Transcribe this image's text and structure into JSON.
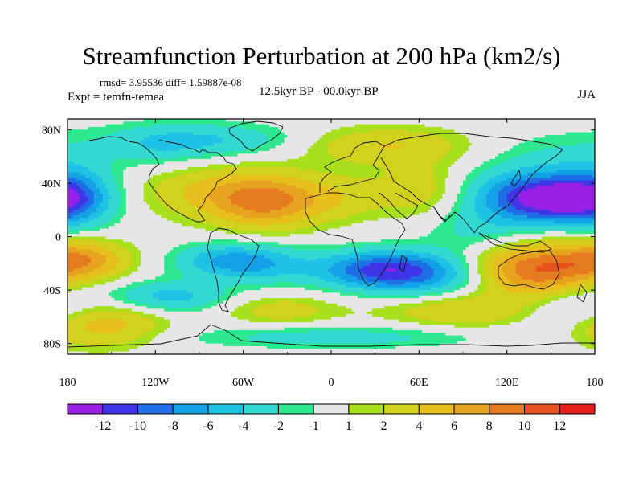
{
  "title": "Streamfunction Perturbation at 200 hPa (km2/s)",
  "stats": "rmsd= 3.95536  diff= 1.59887e-08",
  "experiment": "Expt = temfn-temea",
  "subtitle": "12.5kyr BP - 00.0kyr BP",
  "season": "JJA",
  "axes": {
    "lat_ticks": [
      {
        "value": 80,
        "label": "80N"
      },
      {
        "value": 40,
        "label": "40N"
      },
      {
        "value": 0,
        "label": "0"
      },
      {
        "value": -40,
        "label": "40S"
      },
      {
        "value": -80,
        "label": "80S"
      }
    ],
    "lon_ticks": [
      {
        "value": -180,
        "label": "180"
      },
      {
        "value": -120,
        "label": "120W"
      },
      {
        "value": -60,
        "label": "60W"
      },
      {
        "value": 0,
        "label": "0"
      },
      {
        "value": 60,
        "label": "60E"
      },
      {
        "value": 120,
        "label": "120E"
      },
      {
        "value": 180,
        "label": "180"
      }
    ]
  },
  "colorbar": {
    "colors": [
      "#9b20e6",
      "#3f34e6",
      "#1f6ee6",
      "#14a1e6",
      "#1ec2e4",
      "#33d9d0",
      "#2ee890",
      "#e6e6e6",
      "#a8e01e",
      "#d2d21e",
      "#e8c01e",
      "#e6a31e",
      "#e67a1e",
      "#e6521e",
      "#e61e1e"
    ],
    "labels": [
      "-12",
      "-10",
      "-8",
      "-6",
      "-4",
      "-2",
      "-1",
      "1",
      "2",
      "4",
      "6",
      "8",
      "10",
      "12"
    ]
  },
  "anomalies": [
    {
      "lon": 160,
      "lat": 28,
      "amp": -13,
      "rx": 28,
      "ry": 12
    },
    {
      "lon": 125,
      "lat": 30,
      "amp": -5,
      "rx": 25,
      "ry": 14
    },
    {
      "lon": -175,
      "lat": 32,
      "amp": -4,
      "rx": 18,
      "ry": 20
    },
    {
      "lon": -45,
      "lat": 27,
      "amp": 9,
      "rx": 28,
      "ry": 14
    },
    {
      "lon": -95,
      "lat": 35,
      "amp": 3,
      "rx": 30,
      "ry": 14
    },
    {
      "lon": 10,
      "lat": 30,
      "amp": 2.5,
      "rx": 22,
      "ry": 12
    },
    {
      "lon": 60,
      "lat": 35,
      "amp": 3,
      "rx": 20,
      "ry": 15
    },
    {
      "lon": 35,
      "lat": 68,
      "amp": 4,
      "rx": 40,
      "ry": 10
    },
    {
      "lon": -85,
      "lat": 72,
      "amp": -4,
      "rx": 45,
      "ry": 9
    },
    {
      "lon": 150,
      "lat": 58,
      "amp": -2,
      "rx": 30,
      "ry": 14
    },
    {
      "lon": -120,
      "lat": 65,
      "amp": -2,
      "rx": 25,
      "ry": 12
    },
    {
      "lon": -70,
      "lat": -18,
      "amp": -6,
      "rx": 25,
      "ry": 9
    },
    {
      "lon": -40,
      "lat": -22,
      "amp": -3,
      "rx": 25,
      "ry": 10
    },
    {
      "lon": 35,
      "lat": -25,
      "amp": -10,
      "rx": 30,
      "ry": 10
    },
    {
      "lon": 70,
      "lat": -30,
      "amp": -4,
      "rx": 30,
      "ry": 12
    },
    {
      "lon": 140,
      "lat": -25,
      "amp": 10,
      "rx": 30,
      "ry": 14
    },
    {
      "lon": -170,
      "lat": -17,
      "amp": 7,
      "rx": 22,
      "ry": 10
    },
    {
      "lon": -160,
      "lat": -65,
      "amp": 6,
      "rx": 30,
      "ry": 12
    },
    {
      "lon": -110,
      "lat": -45,
      "amp": -5,
      "rx": 28,
      "ry": 8
    },
    {
      "lon": -35,
      "lat": -55,
      "amp": 3,
      "rx": 28,
      "ry": 8
    },
    {
      "lon": 90,
      "lat": -55,
      "amp": 4,
      "rx": 38,
      "ry": 9
    },
    {
      "lon": 170,
      "lat": -55,
      "amp": -4,
      "rx": 28,
      "ry": 12
    },
    {
      "lon": 0,
      "lat": -75,
      "amp": -3,
      "rx": 70,
      "ry": 6
    },
    {
      "lon": 100,
      "lat": 5,
      "amp": -2.5,
      "rx": 25,
      "ry": 12
    }
  ]
}
